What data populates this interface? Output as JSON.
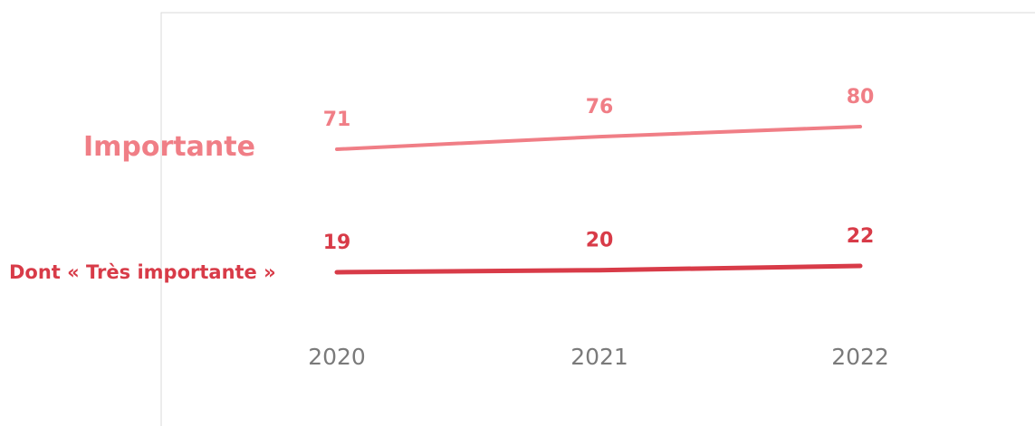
{
  "chart_data": {
    "type": "line",
    "x": [
      "2020",
      "2021",
      "2022"
    ],
    "ylim": [
      0,
      100
    ],
    "grid": false,
    "series": [
      {
        "name": "Importante",
        "values": [
          71,
          76,
          80
        ],
        "color": "#f07e86"
      },
      {
        "name": "Dont « Très importante »",
        "values": [
          19,
          20,
          22
        ],
        "color": "#d83b48"
      }
    ]
  }
}
